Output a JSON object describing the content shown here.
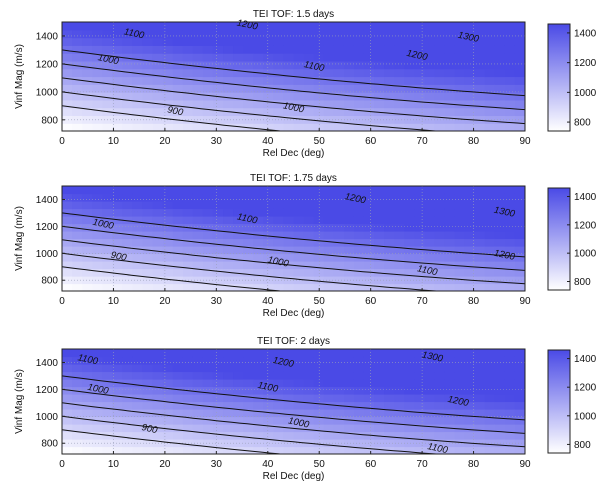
{
  "chart_data": [
    {
      "type": "contour",
      "title": "TEI TOF: 1.5 days",
      "xlabel": "Rel Dec (deg)",
      "ylabel": "Vinf Mag (m/s)",
      "xlim": [
        0,
        90
      ],
      "ylim": [
        720,
        1500
      ],
      "x_ticks": [
        0,
        10,
        20,
        30,
        40,
        50,
        60,
        70,
        80,
        90
      ],
      "y_ticks": [
        800,
        1000,
        1200,
        1400
      ],
      "grid": true,
      "levels": [
        900,
        1000,
        1100,
        1200,
        1300
      ],
      "contour_labels": [
        {
          "text": "1100",
          "x": 14,
          "y": 1415
        },
        {
          "text": "1200",
          "x": 36,
          "y": 1478
        },
        {
          "text": "1300",
          "x": 79,
          "y": 1390
        },
        {
          "text": "1000",
          "x": 9,
          "y": 1230
        },
        {
          "text": "1100",
          "x": 49,
          "y": 1180
        },
        {
          "text": "1200",
          "x": 69,
          "y": 1260
        },
        {
          "text": "900",
          "x": 22,
          "y": 860
        },
        {
          "text": "1000",
          "x": 45,
          "y": 885
        }
      ],
      "colorbar": {
        "ticks": [
          800,
          1000,
          1200,
          1400
        ],
        "range": [
          740,
          1460
        ],
        "low_color": "#ffffff",
        "high_color": "#4a4ae6"
      }
    },
    {
      "type": "contour",
      "title": "TEI TOF: 1.75 days",
      "xlabel": "Rel Dec (deg)",
      "ylabel": "Vinf Mag (m/s)",
      "xlim": [
        0,
        90
      ],
      "ylim": [
        720,
        1500
      ],
      "x_ticks": [
        0,
        10,
        20,
        30,
        40,
        50,
        60,
        70,
        80,
        90
      ],
      "y_ticks": [
        800,
        1000,
        1200,
        1400
      ],
      "grid": true,
      "levels": [
        900,
        1000,
        1100,
        1200,
        1300
      ],
      "contour_labels": [
        {
          "text": "1000",
          "x": 8,
          "y": 1215
        },
        {
          "text": "1100",
          "x": 36,
          "y": 1255
        },
        {
          "text": "1200",
          "x": 57,
          "y": 1405
        },
        {
          "text": "1300",
          "x": 86,
          "y": 1305
        },
        {
          "text": "900",
          "x": 11,
          "y": 975
        },
        {
          "text": "1000",
          "x": 42,
          "y": 935
        },
        {
          "text": "1200",
          "x": 86,
          "y": 985
        },
        {
          "text": "1100",
          "x": 71,
          "y": 870
        }
      ],
      "colorbar": {
        "ticks": [
          800,
          1000,
          1200,
          1400
        ],
        "range": [
          740,
          1460
        ],
        "low_color": "#ffffff",
        "high_color": "#4a4ae6"
      }
    },
    {
      "type": "contour",
      "title": "TEI TOF: 2 days",
      "xlabel": "Rel Dec (deg)",
      "ylabel": "Vinf Mag (m/s)",
      "xlim": [
        0,
        90
      ],
      "ylim": [
        720,
        1500
      ],
      "x_ticks": [
        0,
        10,
        20,
        30,
        40,
        50,
        60,
        70,
        80,
        90
      ],
      "y_ticks": [
        800,
        1000,
        1200,
        1400
      ],
      "grid": true,
      "levels": [
        900,
        1000,
        1100,
        1200,
        1300
      ],
      "contour_labels": [
        {
          "text": "1100",
          "x": 5,
          "y": 1420
        },
        {
          "text": "1200",
          "x": 43,
          "y": 1400
        },
        {
          "text": "1300",
          "x": 72,
          "y": 1440
        },
        {
          "text": "1000",
          "x": 7,
          "y": 1200
        },
        {
          "text": "1100",
          "x": 40,
          "y": 1215
        },
        {
          "text": "1200",
          "x": 77,
          "y": 1110
        },
        {
          "text": "900",
          "x": 17,
          "y": 905
        },
        {
          "text": "1000",
          "x": 46,
          "y": 950
        },
        {
          "text": "1100",
          "x": 73,
          "y": 760
        }
      ],
      "colorbar": {
        "ticks": [
          800,
          1000,
          1200,
          1400
        ],
        "range": [
          740,
          1460
        ],
        "low_color": "#ffffff",
        "high_color": "#4a4ae6"
      }
    }
  ]
}
